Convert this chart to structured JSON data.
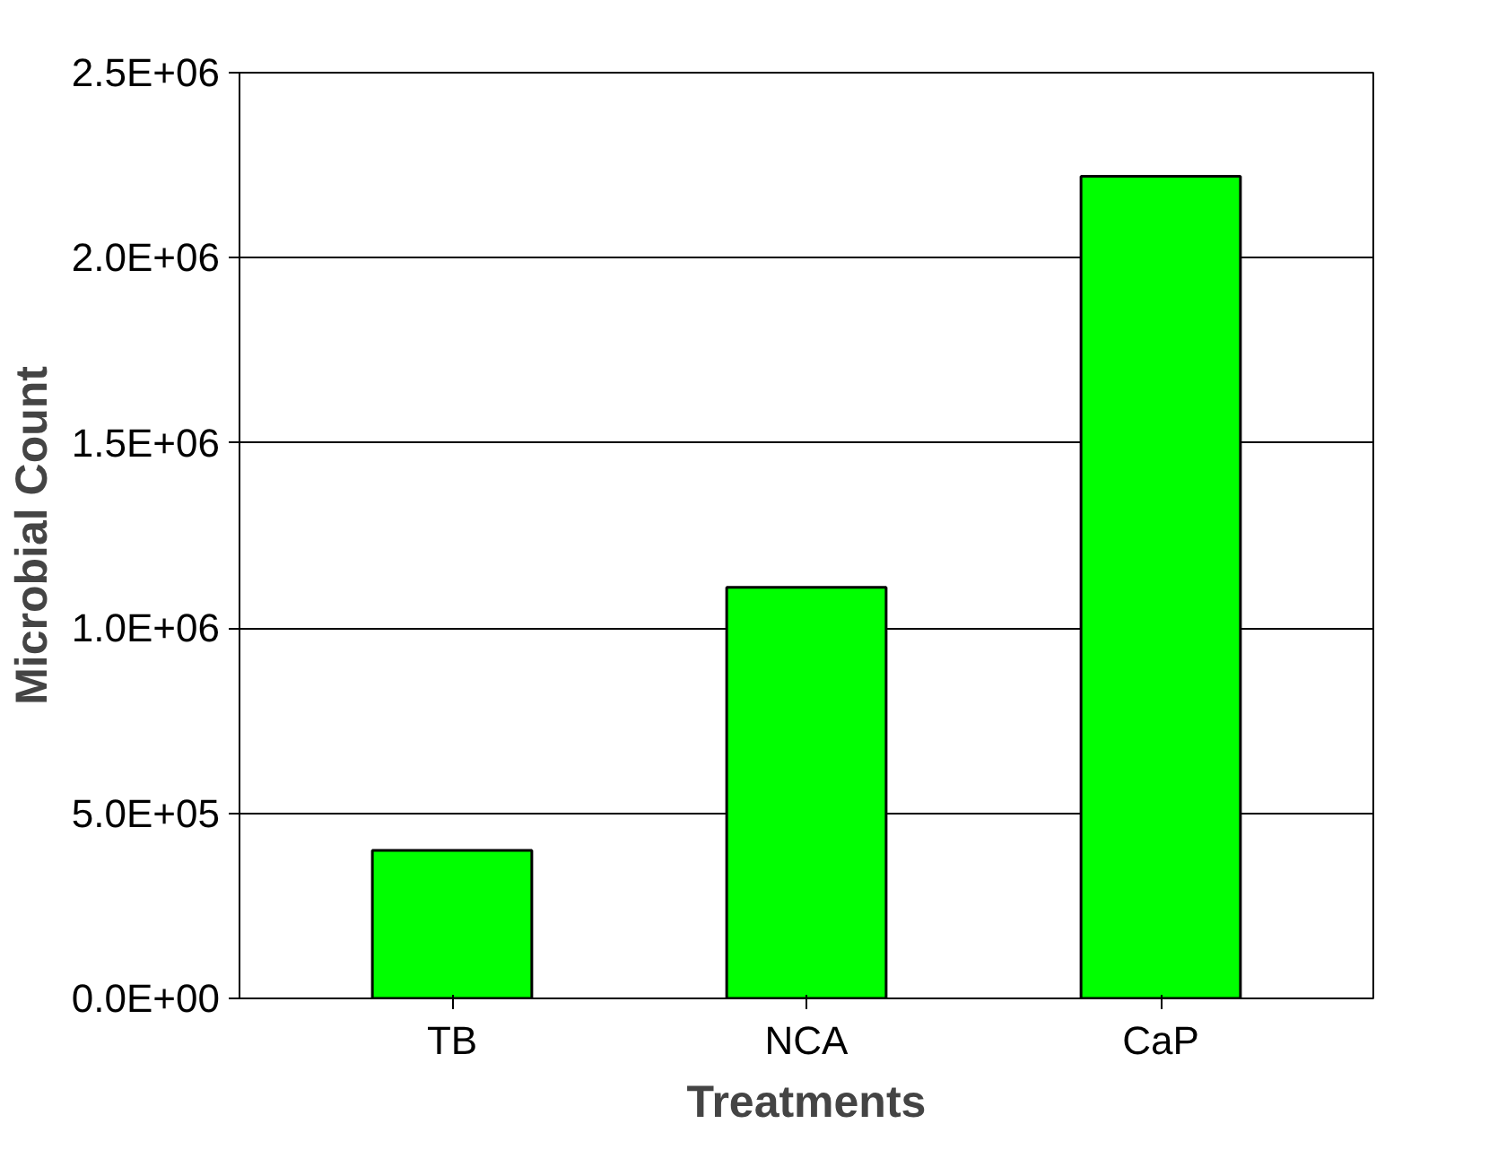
{
  "chart_data": {
    "type": "bar",
    "xlabel": "Treatments",
    "ylabel": "Microbial Count",
    "categories": [
      "TB",
      "NCA",
      "CaP"
    ],
    "values": [
      400000,
      1110000,
      2220000
    ],
    "color": "#00ff00",
    "ylim": [
      0,
      2500000
    ],
    "yticks": [
      {
        "value": 0,
        "label": "0.0E+00"
      },
      {
        "value": 500000,
        "label": "5.0E+05"
      },
      {
        "value": 1000000,
        "label": "1.0E+06"
      },
      {
        "value": 1500000,
        "label": "1.5E+06"
      },
      {
        "value": 2000000,
        "label": "2.0E+06"
      },
      {
        "value": 2500000,
        "label": "2.5E+06"
      }
    ],
    "grid": "y"
  }
}
